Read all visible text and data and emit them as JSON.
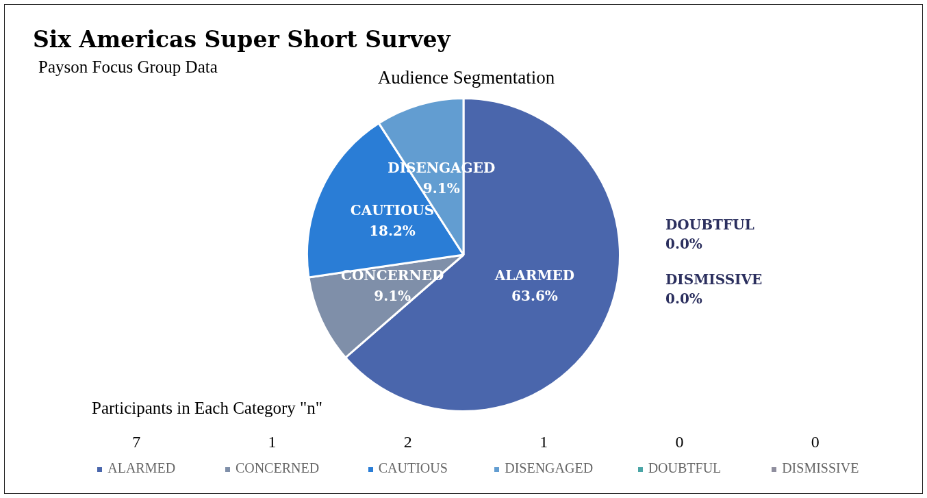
{
  "chart_data": {
    "type": "pie",
    "title": "Six Americas Super Short Survey",
    "subtitle": "Payson Focus Group Data",
    "annotations": [
      "Audience Segmentation",
      "Participants in Each Category \"n\"",
      "7",
      "1",
      "2",
      "1",
      "0",
      "0"
    ],
    "categories": [
      "ALARMED",
      "CONCERNED",
      "CAUTIOUS",
      "DISENGAGED",
      "DOUBTFUL",
      "DISMISSIVE"
    ],
    "values": [
      63.6,
      9.1,
      18.2,
      9.1,
      0,
      0
    ],
    "colors": [
      "#4a66ac",
      "#7f8fa9",
      "#2a7dd6",
      "#629dd1",
      "#4aa5a6",
      "#8f8e9e"
    ],
    "value_labels": [
      "63.6%",
      "9.1%",
      "18.2%",
      "9.1%",
      "0.0%",
      "0.0%"
    ],
    "legend": "bottom"
  }
}
